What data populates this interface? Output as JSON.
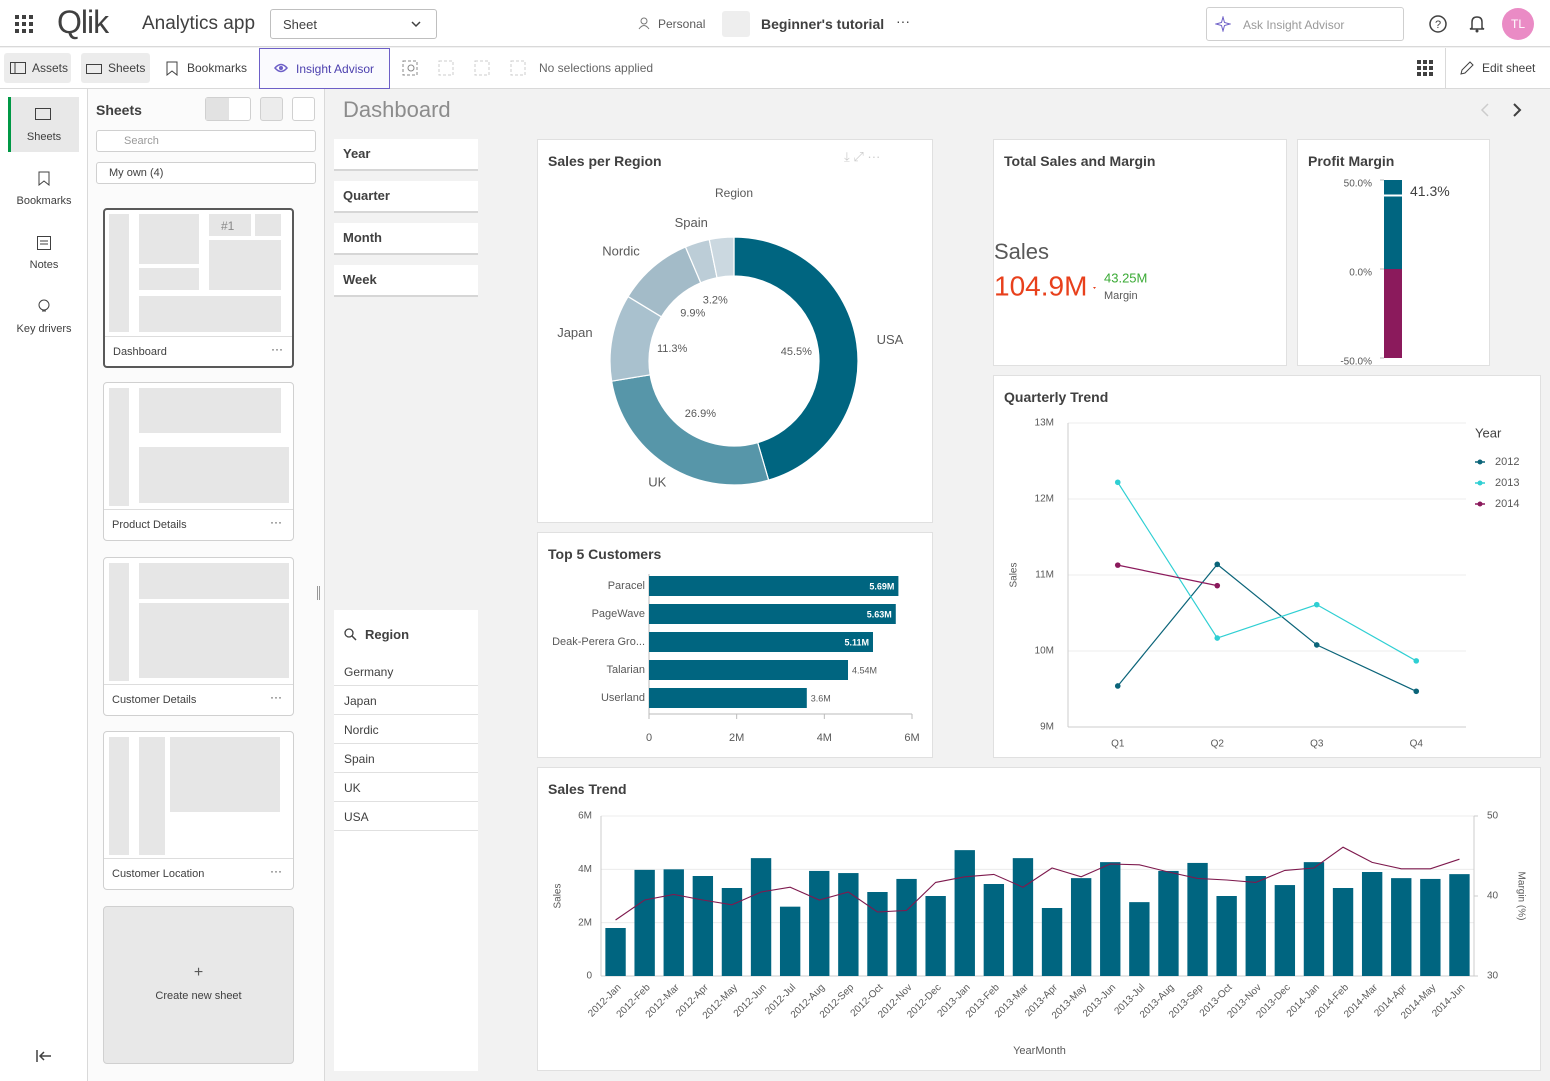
{
  "header": {
    "logo": "Qlik",
    "app_name": "Analytics app",
    "view_select": "Sheet",
    "space": "Personal",
    "tutorial": "Beginner's tutorial",
    "search_placeholder": "Ask Insight Advisor",
    "avatar": "TL"
  },
  "toolbar": {
    "assets": "Assets",
    "sheets": "Sheets",
    "bookmarks": "Bookmarks",
    "insight_advisor": "Insight Advisor",
    "selections": "No selections applied",
    "edit_sheet": "Edit sheet"
  },
  "nav": {
    "items": [
      "Sheets",
      "Bookmarks",
      "Notes",
      "Key drivers"
    ]
  },
  "sheets_panel": {
    "title": "Sheets",
    "search_placeholder": "Search",
    "filter": "My own (4)",
    "thumb_text": "#1",
    "sheets": [
      "Dashboard",
      "Product Details",
      "Customer Details",
      "Customer Location"
    ],
    "create": "Create new sheet"
  },
  "sheet_title": "Dashboard",
  "filters": {
    "fields": [
      "Year",
      "Quarter",
      "Month",
      "Week"
    ],
    "region_title": "Region",
    "region_values": [
      "Germany",
      "Japan",
      "Nordic",
      "Spain",
      "UK",
      "USA"
    ]
  },
  "chart_data": [
    {
      "type": "pie",
      "title": "Sales per Region",
      "legend_title": "Region",
      "categories": [
        "USA",
        "UK",
        "Japan",
        "Nordic",
        "Spain",
        null
      ],
      "values": [
        45.5,
        26.9,
        11.3,
        9.9,
        3.2,
        3.2
      ],
      "value_labels": [
        "45.5%",
        "26.9%",
        "11.3%",
        "9.9%",
        "3.2%",
        null
      ],
      "colors": [
        "#006580",
        "#5796a9",
        "#a9c1ce",
        "#a3bbc8",
        "#bccdd7",
        "#cbd8e0"
      ]
    },
    {
      "type": "bar",
      "title": "Top 5 Customers",
      "orientation": "horizontal",
      "categories": [
        "Paracel",
        "PageWave",
        "Deak-Perera Gro...",
        "Talarian",
        "Userland"
      ],
      "values": [
        5690000,
        5630000,
        5110000,
        4540000,
        3600000
      ],
      "value_labels": [
        "5.69M",
        "5.63M",
        "5.11M",
        "4.54M",
        "3.6M"
      ],
      "color": "#006580",
      "xlim": [
        0,
        6000000
      ],
      "xticks": [
        0,
        {
          "value": 2000000,
          "label": "2M"
        },
        {
          "value": 4000000,
          "label": "4M"
        },
        {
          "value": 6000000,
          "label": "6M"
        }
      ]
    },
    {
      "type": "kpi",
      "title": "Total Sales and Margin",
      "labels": [
        "Sales",
        "Margin"
      ],
      "values": [
        104900000,
        43250000
      ],
      "value_labels": [
        "104.9M",
        "43.25M"
      ],
      "colors": [
        "#e8401c",
        "#3aaa35"
      ]
    },
    {
      "type": "gauge",
      "title": "Profit Margin",
      "value": 41.3,
      "value_label": "41.3%",
      "ylim": [
        -50,
        50
      ],
      "yticks": [
        {
          "value": 50,
          "label": "50.0%"
        },
        {
          "value": 0,
          "label": "0.0%"
        },
        {
          "value": -50,
          "label": "-50.0%"
        }
      ],
      "colors": [
        "#006580",
        "#8b1a5c"
      ]
    },
    {
      "type": "line",
      "title": "Quarterly Trend",
      "y_label": "Sales",
      "legend_title": "Year",
      "legend": "right",
      "grid": true,
      "categories": [
        "Q1",
        "Q2",
        "Q3",
        "Q4"
      ],
      "series": [
        {
          "name": "2012",
          "color": "#0b6479",
          "values": [
            9540000,
            11140000,
            10080000,
            9470000
          ]
        },
        {
          "name": "2013",
          "color": "#2fcfd3",
          "values": [
            12220000,
            10170000,
            10610000,
            9870000
          ]
        },
        {
          "name": "2014",
          "color": "#8b1a5c",
          "values": [
            11130000,
            10860000,
            null,
            null
          ]
        }
      ],
      "ylim": [
        9000000,
        13000000
      ],
      "yticks": [
        {
          "value": 9000000,
          "label": "9M"
        },
        {
          "value": 10000000,
          "label": "10M"
        },
        {
          "value": 11000000,
          "label": "11M"
        },
        {
          "value": 12000000,
          "label": "12M"
        },
        {
          "value": 13000000,
          "label": "13M"
        }
      ]
    },
    {
      "type": "combo",
      "title": "Sales Trend",
      "x_label": "YearMonth",
      "y_label": "Sales",
      "y2_label": "Margin (%)",
      "grid": true,
      "categories": [
        "2012-Jan",
        "2012-Feb",
        "2012-Mar",
        "2012-Apr",
        "2012-May",
        "2012-Jun",
        "2012-Jul",
        "2012-Aug",
        "2012-Sep",
        "2012-Oct",
        "2012-Nov",
        "2012-Dec",
        "2013-Jan",
        "2013-Feb",
        "2013-Mar",
        "2013-Apr",
        "2013-May",
        "2013-Jun",
        "2013-Jul",
        "2013-Aug",
        "2013-Sep",
        "2013-Oct",
        "2013-Nov",
        "2013-Dec",
        "2014-Jan",
        "2014-Feb",
        "2014-Mar",
        "2014-Apr",
        "2014-May",
        "2014-Jun"
      ],
      "series": [
        {
          "kind": "bar",
          "color": "#006580",
          "values": [
            1800000,
            3980000,
            4000000,
            3750000,
            3300000,
            4420000,
            2600000,
            3940000,
            3860000,
            3150000,
            3640000,
            3000000,
            4720000,
            3450000,
            4420000,
            2550000,
            3670000,
            4270000,
            2770000,
            3940000,
            4240000,
            3000000,
            3750000,
            3410000,
            4270000,
            3300000,
            3900000,
            3670000,
            3640000,
            3820000
          ]
        },
        {
          "kind": "line",
          "axis": "y2",
          "color": "#7e1a4e",
          "values": [
            37.0,
            39.5,
            40.2,
            39.5,
            38.9,
            40.5,
            41.1,
            39.5,
            40.5,
            38.0,
            38.2,
            41.7,
            42.4,
            42.7,
            41.1,
            43.5,
            42.4,
            44.0,
            43.9,
            43.0,
            42.2,
            42.0,
            41.7,
            43.2,
            43.5,
            46.1,
            44.2,
            43.4,
            43.4,
            44.6
          ]
        }
      ],
      "ylim": [
        0,
        6000000
      ],
      "yticks": [
        0,
        {
          "value": 2000000,
          "label": "2M"
        },
        {
          "value": 4000000,
          "label": "4M"
        },
        {
          "value": 6000000,
          "label": "6M"
        }
      ],
      "y2lim": [
        30,
        50
      ],
      "y2ticks": [
        30,
        40,
        50
      ]
    }
  ]
}
